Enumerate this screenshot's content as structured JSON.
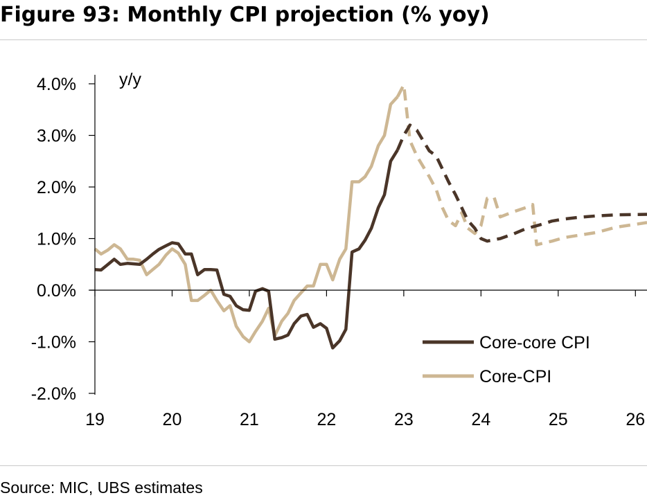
{
  "figure": {
    "title": "Figure 93: Monthly CPI projection (% yoy)",
    "source": "Source: MIC, UBS estimates"
  },
  "chart_data": {
    "type": "line",
    "unit_label": "y/y",
    "x_ticks": [
      "19",
      "20",
      "21",
      "22",
      "23",
      "24",
      "25",
      "26"
    ],
    "xlim": [
      2019,
      2026.15
    ],
    "ylim": [
      -2.0,
      4.0
    ],
    "y_ticks": [
      4.0,
      3.0,
      2.0,
      1.0,
      0.0,
      -1.0,
      -2.0
    ],
    "y_tick_labels": [
      "4.0%",
      "3.0%",
      "2.0%",
      "1.0%",
      "0.0%",
      "-1.0%",
      "-2.0%"
    ],
    "grid": false,
    "legend_position": "lower-right",
    "series": [
      {
        "name": "Core-core CPI",
        "color": "#4a3528",
        "actual": [
          [
            2019.0,
            0.4
          ],
          [
            2019.08,
            0.39
          ],
          [
            2019.17,
            0.5
          ],
          [
            2019.25,
            0.6
          ],
          [
            2019.33,
            0.5
          ],
          [
            2019.42,
            0.52
          ],
          [
            2019.5,
            0.51
          ],
          [
            2019.58,
            0.5
          ],
          [
            2019.67,
            0.6
          ],
          [
            2019.75,
            0.7
          ],
          [
            2019.83,
            0.79
          ],
          [
            2019.92,
            0.86
          ],
          [
            2020.0,
            0.92
          ],
          [
            2020.08,
            0.9
          ],
          [
            2020.17,
            0.7
          ],
          [
            2020.25,
            0.7
          ],
          [
            2020.33,
            0.3
          ],
          [
            2020.42,
            0.4
          ],
          [
            2020.5,
            0.4
          ],
          [
            2020.58,
            0.39
          ],
          [
            2020.67,
            -0.08
          ],
          [
            2020.75,
            -0.12
          ],
          [
            2020.83,
            -0.3
          ],
          [
            2020.92,
            -0.38
          ],
          [
            2021.0,
            -0.39
          ],
          [
            2021.08,
            -0.02
          ],
          [
            2021.17,
            0.03
          ],
          [
            2021.25,
            -0.02
          ],
          [
            2021.33,
            -0.95
          ],
          [
            2021.42,
            -0.92
          ],
          [
            2021.5,
            -0.87
          ],
          [
            2021.58,
            -0.65
          ],
          [
            2021.67,
            -0.5
          ],
          [
            2021.75,
            -0.47
          ],
          [
            2021.83,
            -0.72
          ],
          [
            2021.92,
            -0.65
          ],
          [
            2022.0,
            -0.74
          ],
          [
            2022.08,
            -1.12
          ],
          [
            2022.17,
            -0.98
          ],
          [
            2022.25,
            -0.76
          ],
          [
            2022.33,
            0.74
          ],
          [
            2022.42,
            0.8
          ],
          [
            2022.5,
            0.97
          ],
          [
            2022.58,
            1.2
          ],
          [
            2022.67,
            1.6
          ],
          [
            2022.75,
            1.85
          ],
          [
            2022.83,
            2.5
          ],
          [
            2022.92,
            2.72
          ]
        ],
        "forecast": [
          [
            2022.92,
            2.72
          ],
          [
            2023.0,
            3.0
          ],
          [
            2023.08,
            3.2
          ],
          [
            2023.17,
            3.1
          ],
          [
            2023.25,
            2.9
          ],
          [
            2023.33,
            2.7
          ],
          [
            2023.42,
            2.6
          ],
          [
            2023.5,
            2.35
          ],
          [
            2023.58,
            2.1
          ],
          [
            2023.67,
            1.85
          ],
          [
            2023.75,
            1.6
          ],
          [
            2023.83,
            1.35
          ],
          [
            2023.92,
            1.2
          ],
          [
            2024.0,
            1.0
          ],
          [
            2024.08,
            0.95
          ],
          [
            2024.17,
            0.98
          ],
          [
            2024.25,
            1.0
          ],
          [
            2024.42,
            1.09
          ],
          [
            2024.58,
            1.19
          ],
          [
            2024.75,
            1.26
          ],
          [
            2024.92,
            1.34
          ],
          [
            2025.08,
            1.38
          ],
          [
            2025.25,
            1.41
          ],
          [
            2025.5,
            1.44
          ],
          [
            2025.75,
            1.46
          ],
          [
            2026.15,
            1.47
          ]
        ]
      },
      {
        "name": "Core-CPI",
        "color": "#cdb793",
        "actual": [
          [
            2019.0,
            0.8
          ],
          [
            2019.08,
            0.7
          ],
          [
            2019.17,
            0.78
          ],
          [
            2019.25,
            0.88
          ],
          [
            2019.33,
            0.8
          ],
          [
            2019.42,
            0.6
          ],
          [
            2019.5,
            0.6
          ],
          [
            2019.58,
            0.58
          ],
          [
            2019.67,
            0.3
          ],
          [
            2019.75,
            0.4
          ],
          [
            2019.83,
            0.5
          ],
          [
            2019.92,
            0.68
          ],
          [
            2020.0,
            0.8
          ],
          [
            2020.08,
            0.72
          ],
          [
            2020.17,
            0.5
          ],
          [
            2020.25,
            -0.2
          ],
          [
            2020.33,
            -0.2
          ],
          [
            2020.42,
            -0.1
          ],
          [
            2020.5,
            0.0
          ],
          [
            2020.58,
            -0.2
          ],
          [
            2020.67,
            -0.4
          ],
          [
            2020.75,
            -0.3
          ],
          [
            2020.83,
            -0.7
          ],
          [
            2020.92,
            -0.9
          ],
          [
            2021.0,
            -1.0
          ],
          [
            2021.08,
            -0.8
          ],
          [
            2021.17,
            -0.6
          ],
          [
            2021.25,
            -0.35
          ],
          [
            2021.33,
            -0.88
          ],
          [
            2021.42,
            -0.6
          ],
          [
            2021.5,
            -0.45
          ],
          [
            2021.58,
            -0.2
          ],
          [
            2021.67,
            -0.05
          ],
          [
            2021.75,
            0.08
          ],
          [
            2021.83,
            0.08
          ],
          [
            2021.92,
            0.5
          ],
          [
            2022.0,
            0.5
          ],
          [
            2022.08,
            0.2
          ],
          [
            2022.17,
            0.6
          ],
          [
            2022.25,
            0.8
          ],
          [
            2022.33,
            2.1
          ],
          [
            2022.42,
            2.1
          ],
          [
            2022.5,
            2.2
          ],
          [
            2022.58,
            2.4
          ],
          [
            2022.67,
            2.8
          ],
          [
            2022.75,
            3.0
          ],
          [
            2022.83,
            3.6
          ],
          [
            2022.92,
            3.75
          ]
        ],
        "forecast": [
          [
            2022.92,
            3.75
          ],
          [
            2023.0,
            3.98
          ],
          [
            2023.08,
            2.9
          ],
          [
            2023.17,
            2.6
          ],
          [
            2023.25,
            2.4
          ],
          [
            2023.33,
            2.2
          ],
          [
            2023.42,
            1.95
          ],
          [
            2023.5,
            1.6
          ],
          [
            2023.58,
            1.35
          ],
          [
            2023.67,
            1.25
          ],
          [
            2023.75,
            1.5
          ],
          [
            2023.83,
            1.2
          ],
          [
            2023.92,
            1.1
          ],
          [
            2024.0,
            1.25
          ],
          [
            2024.08,
            1.78
          ],
          [
            2024.17,
            1.8
          ],
          [
            2024.25,
            1.42
          ],
          [
            2024.42,
            1.52
          ],
          [
            2024.58,
            1.6
          ],
          [
            2024.67,
            1.66
          ],
          [
            2024.72,
            0.88
          ],
          [
            2024.92,
            0.95
          ],
          [
            2025.08,
            1.02
          ],
          [
            2025.25,
            1.06
          ],
          [
            2025.5,
            1.12
          ],
          [
            2025.75,
            1.22
          ],
          [
            2026.15,
            1.31
          ]
        ]
      }
    ]
  }
}
